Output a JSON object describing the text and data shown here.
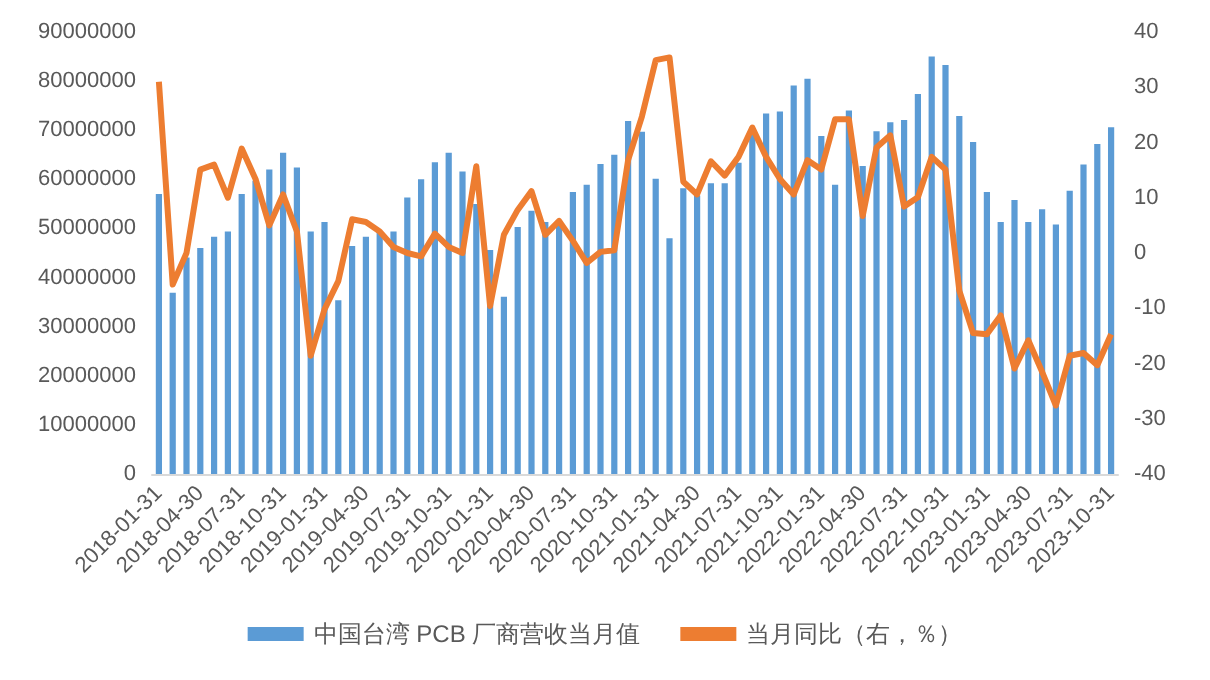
{
  "chart_data": {
    "type": "bar",
    "categories": [
      "2018-01-31",
      null,
      null,
      "2018-04-30",
      null,
      null,
      "2018-07-31",
      null,
      null,
      "2018-10-31",
      null,
      null,
      "2019-01-31",
      null,
      null,
      "2019-04-30",
      null,
      null,
      "2019-07-31",
      null,
      null,
      "2019-10-31",
      null,
      null,
      "2020-01-31",
      null,
      null,
      "2020-04-30",
      null,
      null,
      "2020-07-31",
      null,
      null,
      "2020-10-31",
      null,
      null,
      "2021-01-31",
      null,
      null,
      "2021-04-30",
      null,
      null,
      "2021-07-31",
      null,
      null,
      "2021-10-31",
      null,
      null,
      "2022-01-31",
      null,
      null,
      "2022-04-30",
      null,
      null,
      "2022-07-31",
      null,
      null,
      "2022-10-31",
      null,
      null,
      "2023-01-31",
      null,
      null,
      "2023-04-30",
      null,
      null,
      "2023-07-31",
      null,
      null,
      "2023-10-31"
    ],
    "series": [
      {
        "name": "中国台湾 PCB 厂商营收当月值",
        "color": "#5b9bd5",
        "values": [
          57000000,
          36900000,
          44100000,
          46000000,
          48300000,
          49400000,
          57000000,
          59700000,
          62000000,
          65400000,
          62400000,
          49400000,
          51300000,
          35400000,
          46400000,
          48300000,
          49400000,
          49400000,
          56300000,
          60000000,
          63500000,
          65400000,
          61600000,
          55000000,
          45600000,
          36100000,
          50300000,
          53600000,
          51300000,
          50700000,
          57400000,
          58900000,
          63100000,
          65000000,
          71900000,
          69700000,
          60100000,
          48000000,
          58200000,
          56700000,
          59200000,
          59200000,
          63400000,
          69100000,
          73400000,
          73800000,
          79100000,
          80500000,
          68800000,
          58900000,
          74000000,
          62700000,
          69800000,
          71600000,
          72100000,
          77400000,
          85000000,
          83300000,
          72900000,
          67600000,
          57400000,
          51300000,
          55800000,
          51300000,
          53900000,
          50800000,
          57700000,
          63000000,
          67200000,
          70600000
        ]
      },
      {
        "name": "当月同比（右，％）",
        "type": "line",
        "axis": "y2",
        "color": "#ed7d31",
        "values": [
          31,
          -5.7,
          0,
          15.1,
          16,
          10,
          18.9,
          13.4,
          5,
          10.6,
          3.9,
          -18.6,
          -10.2,
          -5.1,
          6.1,
          5.6,
          3.9,
          1.1,
          0,
          -0.6,
          3.5,
          1.1,
          0,
          15.7,
          -9.6,
          3.3,
          7.8,
          11.2,
          3.3,
          5.8,
          2.2,
          -1.8,
          0.2,
          0.5,
          16.8,
          24.7,
          34.9,
          35.4,
          12.9,
          10.6,
          16.6,
          14,
          17.4,
          22.7,
          17.4,
          13.4,
          10.6,
          16.8,
          15.1,
          24.2,
          24.2,
          6.7,
          19.1,
          21.3,
          8.4,
          10.1,
          17.4,
          15.1,
          -6.8,
          -14.5,
          -14.7,
          -11.3,
          -20.9,
          -15.8,
          -21.5,
          -27.6,
          -18.6,
          -18.1,
          -20.3,
          -14.7
        ]
      }
    ],
    "ylim": [
      0,
      90000000
    ],
    "yticks": [
      0,
      10000000,
      20000000,
      30000000,
      40000000,
      50000000,
      60000000,
      70000000,
      80000000,
      90000000
    ],
    "y2lim": [
      -40,
      40
    ],
    "y2ticks": [
      -40,
      -30,
      -20,
      -10,
      0,
      10,
      20,
      30,
      40
    ],
    "legend": "bottom",
    "grid": false,
    "marker": "none"
  }
}
